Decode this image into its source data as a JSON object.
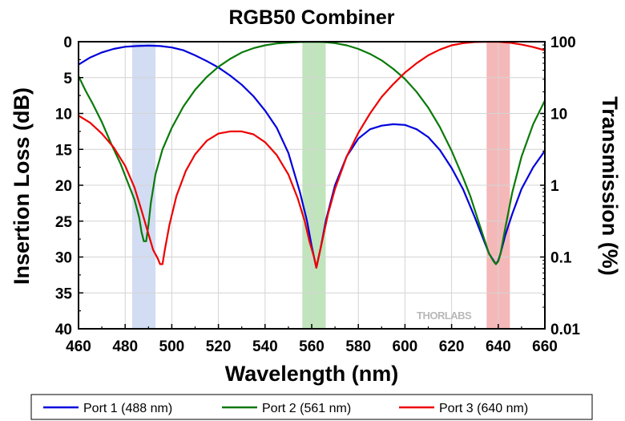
{
  "chart_data": {
    "type": "line",
    "title": "RGB50 Combiner",
    "xlabel": "Wavelength (nm)",
    "ylabel": "Insertion Loss (dB)",
    "y2label": "Transmission (%)",
    "xlim": [
      460,
      660
    ],
    "ylim": [
      40,
      0
    ],
    "y_inverted": true,
    "y2_scale": "log",
    "y2_range": [
      0.01,
      100
    ],
    "x_ticks": [
      "460",
      "480",
      "500",
      "520",
      "540",
      "560",
      "580",
      "600",
      "620",
      "640",
      "660"
    ],
    "y_ticks": [
      "0",
      "5",
      "10",
      "15",
      "20",
      "25",
      "30",
      "35",
      "40"
    ],
    "y2_ticks": [
      "100",
      "10",
      "1",
      "0.1",
      "0.01"
    ],
    "legend_position": "bottom",
    "grid": true,
    "watermark_text": "THORLABS",
    "highlight_bands": [
      {
        "x0": 483,
        "x1": 493,
        "color": "#d2dcf2"
      },
      {
        "x0": 556,
        "x1": 566,
        "color": "#c0e4bc"
      },
      {
        "x0": 635,
        "x1": 645,
        "color": "#f5b8b8"
      }
    ],
    "series": [
      {
        "name": "Port 1 (488 nm)",
        "color": "#0000dd",
        "x": [
          460,
          465,
          470,
          475,
          480,
          485,
          490,
          495,
          500,
          505,
          510,
          515,
          520,
          525,
          530,
          535,
          540,
          545,
          550,
          555,
          558,
          560,
          562,
          564,
          566,
          570,
          575,
          580,
          585,
          590,
          595,
          600,
          605,
          610,
          615,
          620,
          625,
          630,
          633,
          636,
          638,
          639,
          640,
          641,
          643,
          646,
          650,
          655,
          660
        ],
        "y": [
          3.2,
          2.2,
          1.5,
          1.0,
          0.7,
          0.6,
          0.55,
          0.6,
          0.8,
          1.2,
          1.9,
          2.7,
          3.6,
          4.7,
          6.0,
          7.6,
          9.6,
          12.0,
          15.5,
          21.0,
          25.0,
          28.5,
          31.5,
          28.5,
          25.0,
          20.0,
          16.0,
          13.5,
          12.2,
          11.7,
          11.5,
          11.6,
          12.2,
          13.3,
          15.1,
          17.6,
          20.6,
          24.5,
          27.0,
          29.5,
          30.5,
          31.0,
          30.5,
          29.5,
          27.0,
          24.0,
          20.5,
          17.5,
          15.2
        ]
      },
      {
        "name": "Port 2 (561 nm)",
        "color": "#0a7a0a",
        "x": [
          460,
          463,
          466,
          470,
          474,
          478,
          481,
          484,
          486,
          487,
          488,
          489,
          490,
          491,
          493,
          496,
          500,
          505,
          510,
          515,
          520,
          525,
          530,
          535,
          540,
          545,
          550,
          555,
          560,
          565,
          570,
          575,
          580,
          585,
          590,
          595,
          600,
          605,
          610,
          615,
          620,
          625,
          628,
          631,
          634,
          636,
          638,
          639,
          640,
          641,
          643,
          646,
          650,
          655,
          660
        ],
        "y": [
          4.8,
          6.8,
          8.6,
          11.2,
          14.2,
          17.0,
          19.5,
          22.0,
          24.5,
          26.5,
          27.8,
          27.8,
          25.5,
          22.5,
          18.5,
          15.0,
          12.0,
          9.0,
          6.7,
          4.9,
          3.5,
          2.4,
          1.5,
          0.9,
          0.5,
          0.25,
          0.12,
          0.05,
          0.02,
          0.05,
          0.2,
          0.5,
          1.0,
          1.7,
          2.6,
          3.8,
          5.2,
          7.0,
          9.2,
          11.9,
          15.2,
          19.0,
          21.5,
          24.5,
          27.5,
          29.5,
          30.6,
          31.0,
          30.6,
          29.5,
          26.0,
          21.0,
          16.0,
          11.5,
          8.2
        ]
      },
      {
        "name": "Port 3 (640 nm)",
        "color": "#ee0000",
        "x": [
          460,
          465,
          470,
          475,
          480,
          484,
          487,
          490,
          492,
          494,
          495,
          496,
          497,
          499,
          502,
          506,
          510,
          515,
          520,
          525,
          530,
          535,
          540,
          545,
          550,
          554,
          557,
          559,
          561,
          562,
          563,
          565,
          567,
          570,
          575,
          580,
          585,
          590,
          595,
          600,
          605,
          610,
          615,
          620,
          625,
          630,
          635,
          640,
          645,
          650,
          655,
          660
        ],
        "y": [
          10.3,
          11.3,
          12.8,
          14.7,
          17.3,
          20.3,
          23.5,
          26.8,
          29.0,
          30.2,
          31.0,
          31.0,
          29.0,
          25.5,
          21.5,
          18.0,
          15.7,
          13.8,
          12.8,
          12.5,
          12.5,
          12.9,
          14.0,
          15.8,
          18.5,
          21.8,
          25.0,
          27.8,
          30.0,
          31.5,
          30.0,
          27.0,
          24.0,
          20.5,
          16.0,
          12.7,
          10.0,
          7.7,
          5.9,
          4.3,
          3.0,
          1.9,
          1.1,
          0.5,
          0.2,
          0.05,
          0.01,
          0.02,
          0.15,
          0.4,
          0.75,
          1.2
        ]
      }
    ]
  }
}
